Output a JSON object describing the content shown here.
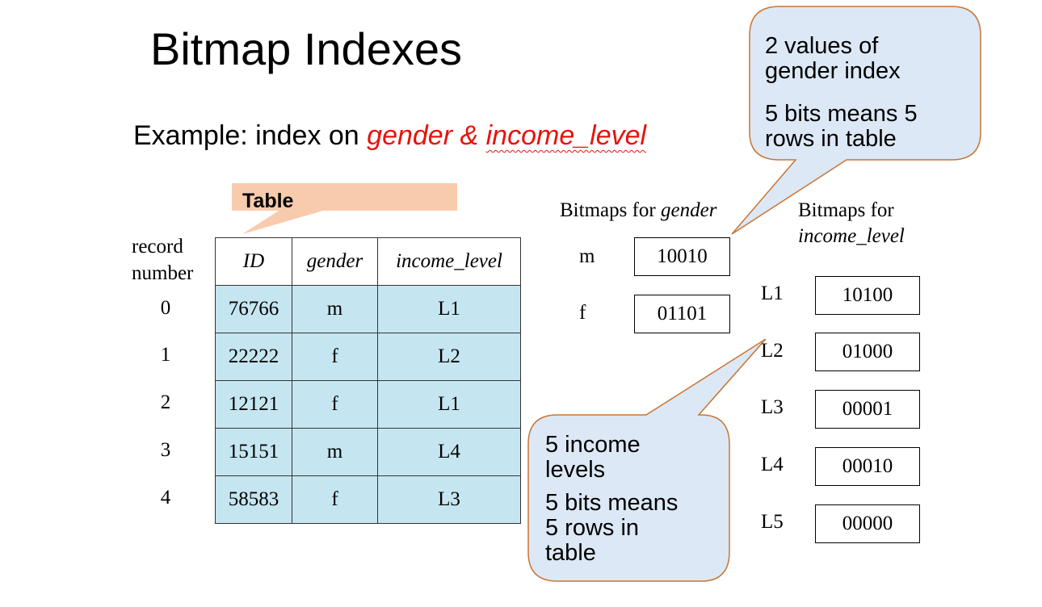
{
  "title": "Bitmap Indexes",
  "subtitle": {
    "prefix": "Example: index on ",
    "attr1": "gender",
    "connector": " & ",
    "attr2": "income_level"
  },
  "table_label": "Table",
  "record_header": [
    "record",
    "number"
  ],
  "columns": [
    "ID",
    "gender",
    "income_level"
  ],
  "rows": [
    {
      "record": "0",
      "id": "76766",
      "gender": "m",
      "income": "L1"
    },
    {
      "record": "1",
      "id": "22222",
      "gender": "f",
      "income": "L2"
    },
    {
      "record": "2",
      "id": "12121",
      "gender": "f",
      "income": "L1"
    },
    {
      "record": "3",
      "id": "15151",
      "gender": "m",
      "income": "L4"
    },
    {
      "record": "4",
      "id": "58583",
      "gender": "f",
      "income": "L3"
    }
  ],
  "gender_bitmaps": {
    "heading_prefix": "Bitmaps for ",
    "heading_attr": "gender",
    "items": [
      {
        "key": "m",
        "bits": "10010"
      },
      {
        "key": "f",
        "bits": "01101"
      }
    ]
  },
  "income_bitmaps": {
    "heading_prefix": "Bitmaps for",
    "heading_attr": "income_level",
    "items": [
      {
        "key": "L1",
        "bits": "10100"
      },
      {
        "key": "L2",
        "bits": "01000"
      },
      {
        "key": "L3",
        "bits": "00001"
      },
      {
        "key": "L4",
        "bits": "00010"
      },
      {
        "key": "L5",
        "bits": "00000"
      }
    ]
  },
  "callout_gender": {
    "line1": "2 values  of",
    "line2": "gender index",
    "line3": "5 bits means 5",
    "line4": "rows in table"
  },
  "callout_income": {
    "line1": "5 income",
    "line2": "levels",
    "line3": "5 bits means",
    "line4": "5 rows in",
    "line5": "table"
  },
  "colors": {
    "accent_red": "#e8120c",
    "table_fill": "#c5e6f1",
    "callout_fill": "#dce8f5",
    "callout_border": "#c87533",
    "table_label_fill": "#f8cbad"
  }
}
